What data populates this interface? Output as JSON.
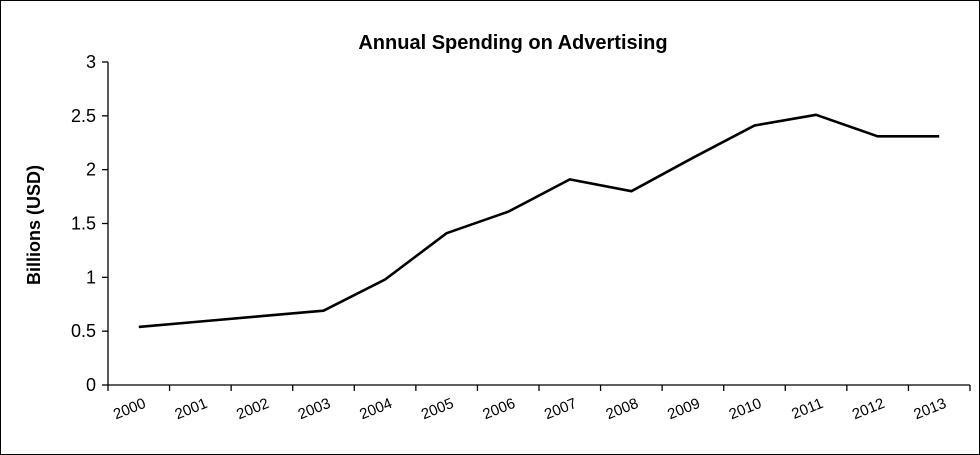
{
  "chart_data": {
    "type": "line",
    "title": "Annual Spending on Advertising",
    "ylabel": "Billions (USD)",
    "xlabel": "",
    "categories": [
      "2000",
      "2001",
      "2002",
      "2003",
      "2004",
      "2005",
      "2006",
      "2007",
      "2008",
      "2009",
      "2010",
      "2011",
      "2012",
      "2013"
    ],
    "series": [
      {
        "values": [
          0.54,
          0.59,
          0.64,
          0.69,
          0.98,
          1.41,
          1.61,
          1.91,
          1.8,
          2.11,
          2.41,
          2.51,
          2.31,
          2.31
        ]
      }
    ],
    "ylim": [
      0,
      3
    ],
    "yticks": [
      "0",
      "0.5",
      "1",
      "1.5",
      "2",
      "2.5",
      "3"
    ],
    "grid": false,
    "line_color": "#000000"
  }
}
